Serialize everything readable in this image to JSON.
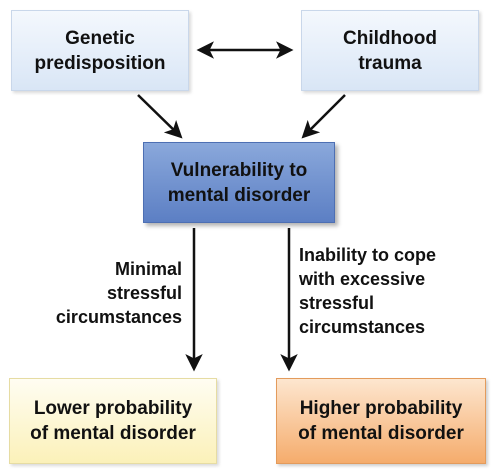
{
  "nodes": {
    "genetic": "Genetic\npredisposition",
    "trauma": "Childhood\ntrauma",
    "vulnerability": "Vulnerability to\nmental disorder",
    "lower": "Lower probability\nof mental disorder",
    "higher": "Higher probability\nof mental disorder"
  },
  "edge_labels": {
    "minimal": "Minimal\nstressful\ncircumstances",
    "inability": "Inability to cope\nwith excessive\nstressful\ncircumstances"
  },
  "colors": {
    "top_boxes": "#d9e6f6",
    "vulnerability_box": "#6b8cce",
    "lower_box": "#fbf1b9",
    "higher_box": "#f5ac6c",
    "arrow": "#111111"
  },
  "edges": [
    {
      "from": "genetic",
      "to": "trauma",
      "type": "bidirectional"
    },
    {
      "from": "genetic",
      "to": "vulnerability",
      "type": "directed"
    },
    {
      "from": "trauma",
      "to": "vulnerability",
      "type": "directed"
    },
    {
      "from": "vulnerability",
      "to": "lower",
      "type": "directed",
      "label": "minimal"
    },
    {
      "from": "vulnerability",
      "to": "higher",
      "type": "directed",
      "label": "inability"
    }
  ]
}
